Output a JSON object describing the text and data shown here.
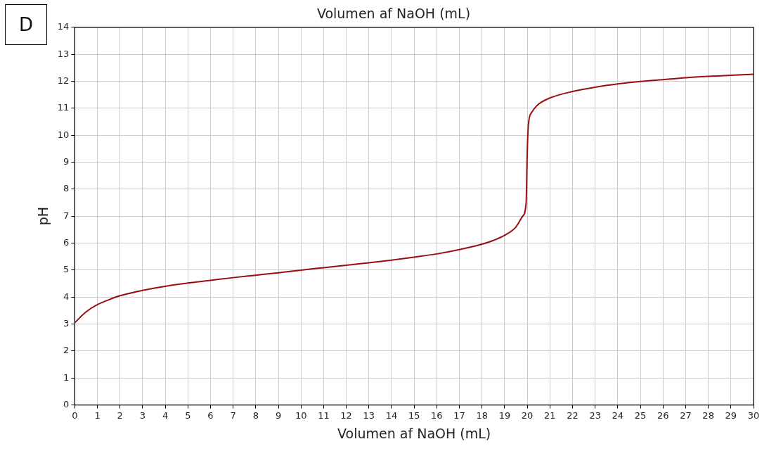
{
  "chart_data": {
    "type": "line",
    "title": "Volumen af NaOH (mL)",
    "xlabel": "Volumen af NaOH (mL)",
    "ylabel": "pH",
    "annotations": [
      "D"
    ],
    "x": [
      0,
      0.5,
      1,
      1.5,
      2,
      3,
      4,
      5,
      6,
      7,
      8,
      9,
      10,
      11,
      12,
      13,
      14,
      15,
      16,
      17,
      18,
      18.5,
      19,
      19.5,
      19.8,
      19.95,
      20,
      20.05,
      20.2,
      20.5,
      21,
      22,
      23,
      24,
      25,
      26,
      27,
      28,
      29,
      30
    ],
    "series": [
      {
        "color": "#990f0f",
        "values": [
          3.05,
          3.45,
          3.72,
          3.9,
          4.05,
          4.25,
          4.4,
          4.52,
          4.62,
          4.72,
          4.81,
          4.9,
          5.0,
          5.09,
          5.18,
          5.27,
          5.37,
          5.48,
          5.6,
          5.76,
          5.96,
          6.1,
          6.29,
          6.6,
          7.0,
          7.5,
          9.4,
          10.4,
          10.85,
          11.15,
          11.38,
          11.62,
          11.78,
          11.9,
          11.99,
          12.06,
          12.13,
          12.18,
          12.22,
          12.26
        ]
      }
    ],
    "xlim": [
      0,
      30
    ],
    "xticks": [
      0,
      1,
      2,
      3,
      4,
      5,
      6,
      7,
      8,
      9,
      10,
      11,
      12,
      13,
      14,
      15,
      16,
      17,
      18,
      19,
      20,
      21,
      22,
      23,
      24,
      25,
      26,
      27,
      28,
      29,
      30
    ],
    "ylim": [
      0,
      14
    ],
    "yticks": [
      0,
      1,
      2,
      3,
      4,
      5,
      6,
      7,
      8,
      9,
      10,
      11,
      12,
      13,
      14
    ],
    "grid": true,
    "legend": false,
    "marker": "none",
    "line_style": "solid"
  }
}
